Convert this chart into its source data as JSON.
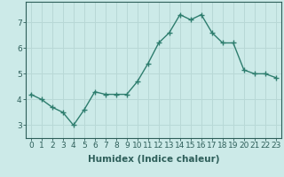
{
  "x": [
    0,
    1,
    2,
    3,
    4,
    5,
    6,
    7,
    8,
    9,
    10,
    11,
    12,
    13,
    14,
    15,
    16,
    17,
    18,
    19,
    20,
    21,
    22,
    23
  ],
  "y": [
    4.2,
    4.0,
    3.7,
    3.5,
    3.0,
    3.6,
    4.3,
    4.2,
    4.2,
    4.2,
    4.7,
    5.4,
    6.2,
    6.6,
    7.3,
    7.1,
    7.3,
    6.6,
    6.2,
    6.2,
    5.15,
    5.0,
    5.0,
    4.85
  ],
  "xlabel": "Humidex (Indice chaleur)",
  "xlim": [
    -0.5,
    23.5
  ],
  "ylim": [
    2.5,
    7.8
  ],
  "yticks": [
    3,
    4,
    5,
    6,
    7
  ],
  "xticks": [
    0,
    1,
    2,
    3,
    4,
    5,
    6,
    7,
    8,
    9,
    10,
    11,
    12,
    13,
    14,
    15,
    16,
    17,
    18,
    19,
    20,
    21,
    22,
    23
  ],
  "bg_color": "#cceae8",
  "grid_color": "#b8d8d6",
  "line_color": "#2e7d6e",
  "marker_color": "#2e7d6e",
  "tick_color": "#2e5f5a",
  "xlabel_fontsize": 7.5,
  "tick_fontsize": 6.5,
  "line_width": 1.0,
  "marker_size": 4
}
